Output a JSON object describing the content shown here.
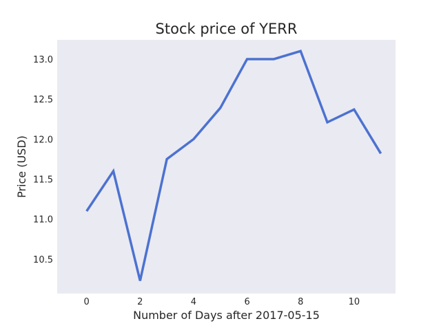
{
  "chart_data": {
    "type": "line",
    "title": "Stock price of YERR",
    "xlabel": "Number of Days after 2017-05-15",
    "ylabel": "Price (USD)",
    "xlim": [
      -1.1,
      11.55
    ],
    "ylim": [
      10.07,
      13.24
    ],
    "x_ticks": [
      0,
      2,
      4,
      6,
      8,
      10
    ],
    "y_ticks": [
      10.5,
      11.0,
      11.5,
      12.0,
      12.5,
      13.0
    ],
    "y_tick_labels": [
      "10.5",
      "11.0",
      "11.5",
      "12.0",
      "12.5",
      "13.0"
    ],
    "grid": false,
    "legend": "none",
    "background_color": "#eaeaf2",
    "series": [
      {
        "color": "#4c72d0",
        "x": [
          0,
          1,
          2,
          3,
          4,
          5,
          6,
          7,
          8,
          9,
          10,
          11
        ],
        "y": [
          11.1,
          11.6,
          10.23,
          11.75,
          12.0,
          12.39,
          13.0,
          13.0,
          13.1,
          12.21,
          12.37,
          11.82
        ]
      }
    ]
  }
}
